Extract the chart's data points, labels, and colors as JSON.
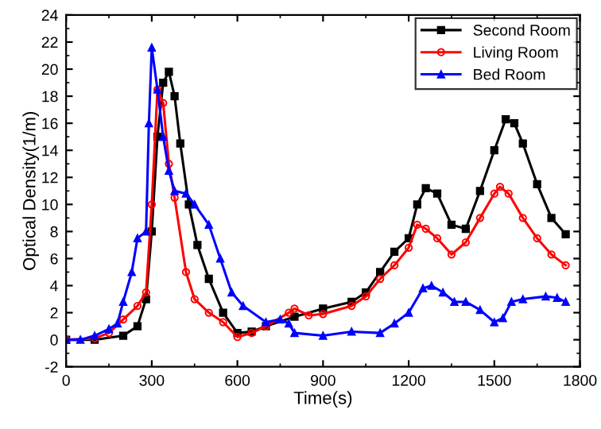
{
  "chart_data": {
    "type": "line",
    "xlabel": "Time(s)",
    "ylabel": "Optical Density(1/m)",
    "xlim": [
      0,
      1800
    ],
    "xticks": [
      0,
      300,
      600,
      900,
      1200,
      1500,
      1800
    ],
    "ylim": [
      -2,
      24
    ],
    "yticks": [
      -2,
      0,
      2,
      4,
      6,
      8,
      10,
      12,
      14,
      16,
      18,
      20,
      22,
      24
    ],
    "legend": "top right",
    "grid": false,
    "line_style": "solid",
    "series": [
      {
        "name": "Second Room",
        "color": "#000000",
        "marker": "square",
        "x": [
          0,
          100,
          200,
          250,
          280,
          300,
          320,
          340,
          360,
          380,
          400,
          430,
          460,
          500,
          550,
          600,
          650,
          700,
          800,
          900,
          1000,
          1050,
          1100,
          1150,
          1200,
          1230,
          1260,
          1300,
          1350,
          1400,
          1450,
          1500,
          1540,
          1570,
          1600,
          1650,
          1700,
          1750
        ],
        "values": [
          0,
          0,
          0.3,
          1,
          3,
          8,
          15,
          19,
          19.8,
          18,
          14.5,
          10,
          7,
          4.5,
          2,
          0.5,
          0.6,
          1,
          1.7,
          2.3,
          2.8,
          3.5,
          5,
          6.5,
          7.5,
          10,
          11.2,
          10.8,
          8.5,
          8.2,
          11,
          14,
          16.3,
          16,
          14.5,
          11.5,
          9,
          7.8
        ]
      },
      {
        "name": "Living Room",
        "color": "#ff0000",
        "marker": "circle",
        "x": [
          0,
          100,
          150,
          200,
          250,
          280,
          300,
          320,
          340,
          360,
          380,
          420,
          450,
          500,
          550,
          600,
          650,
          700,
          780,
          800,
          850,
          900,
          1000,
          1050,
          1100,
          1150,
          1200,
          1230,
          1260,
          1300,
          1350,
          1400,
          1450,
          1500,
          1520,
          1550,
          1600,
          1650,
          1700,
          1750
        ],
        "values": [
          0,
          0.1,
          0.5,
          1.5,
          2.5,
          3.5,
          10,
          18.5,
          17.5,
          13,
          10.5,
          5,
          3,
          2,
          1.3,
          0.2,
          0.5,
          1,
          2,
          2.3,
          1.8,
          1.9,
          2.5,
          3.2,
          4.5,
          5.5,
          6.8,
          8.5,
          8.2,
          7.5,
          6.3,
          7.2,
          9,
          10.8,
          11.3,
          10.8,
          9,
          7.5,
          6.3,
          5.5
        ]
      },
      {
        "name": "Bed Room",
        "color": "#0000ff",
        "marker": "triangle",
        "x": [
          0,
          50,
          100,
          150,
          180,
          200,
          230,
          250,
          280,
          290,
          300,
          320,
          340,
          360,
          380,
          420,
          450,
          500,
          540,
          580,
          620,
          700,
          750,
          780,
          800,
          900,
          1000,
          1100,
          1150,
          1200,
          1250,
          1280,
          1320,
          1360,
          1400,
          1450,
          1500,
          1530,
          1560,
          1600,
          1680,
          1720,
          1750
        ],
        "values": [
          0,
          0,
          0.3,
          0.8,
          1.2,
          2.8,
          5,
          7.5,
          8,
          16,
          21.6,
          18.5,
          15,
          12.5,
          11,
          10.8,
          10,
          8.5,
          6,
          3.5,
          2.5,
          1.3,
          1.5,
          1.2,
          0.5,
          0.3,
          0.6,
          0.5,
          1.2,
          2,
          3.8,
          4,
          3.5,
          2.8,
          2.8,
          2.2,
          1.3,
          1.6,
          2.8,
          3,
          3.2,
          3.1,
          2.8
        ]
      }
    ]
  }
}
